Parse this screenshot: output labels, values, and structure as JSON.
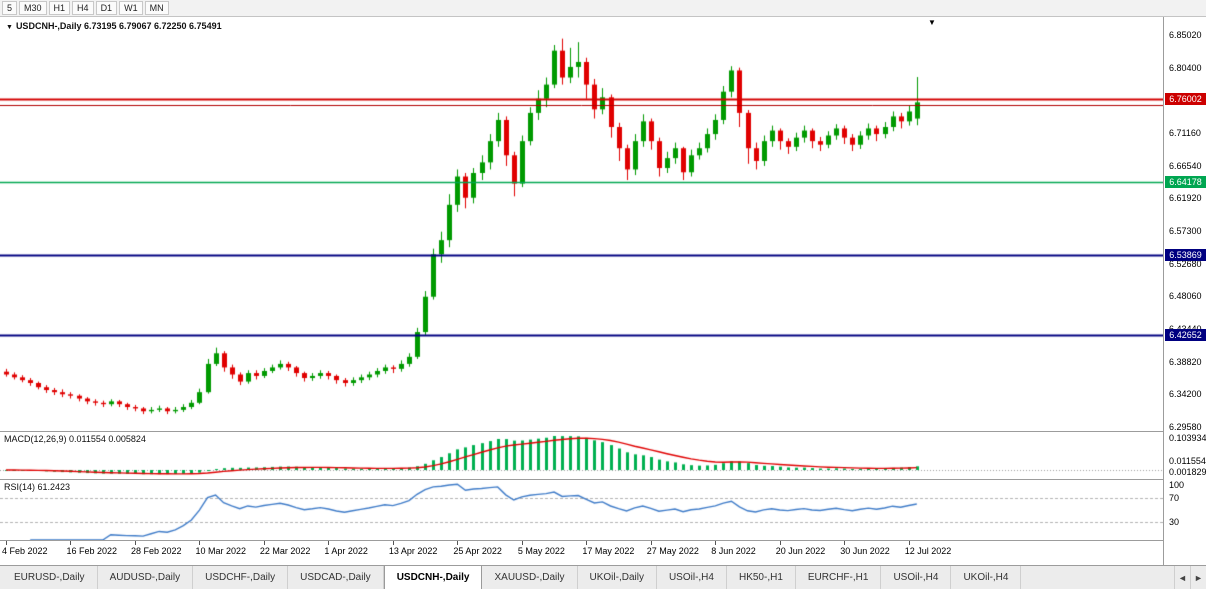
{
  "toolbar": {
    "timeframes": [
      "5",
      "M30",
      "H1",
      "H4",
      "D1",
      "W1",
      "MN"
    ]
  },
  "chart": {
    "title": "USDCNH-,Daily 6.73195 6.79067 6.72250 6.75491",
    "symbol": "USDCNH-,Daily",
    "open": "6.73195",
    "high": "6.79067",
    "low": "6.72250",
    "close": "6.75491",
    "dropdown_icon": "▼",
    "bar_marker_icon": "▼"
  },
  "price_axis": {
    "labels": [
      {
        "text": "6.85020",
        "value": 6.8502
      },
      {
        "text": "6.80400",
        "value": 6.804
      },
      {
        "text": "6.75780",
        "value": 6.7578
      },
      {
        "text": "6.71160",
        "value": 6.7116
      },
      {
        "text": "6.66540",
        "value": 6.6654
      },
      {
        "text": "6.61920",
        "value": 6.6192
      },
      {
        "text": "6.57300",
        "value": 6.573
      },
      {
        "text": "6.52680",
        "value": 6.5268
      },
      {
        "text": "6.48060",
        "value": 6.4806
      },
      {
        "text": "6.43440",
        "value": 6.4344
      },
      {
        "text": "6.38820",
        "value": 6.3882
      },
      {
        "text": "6.34200",
        "value": 6.342
      },
      {
        "text": "6.29580",
        "value": 6.2958
      }
    ]
  },
  "hlines": [
    {
      "price": 6.76002,
      "color": "#D40000",
      "width": 2,
      "badge": "6.76002",
      "badge_color": "#CC0000"
    },
    {
      "price": 6.75152,
      "color": "#B00000",
      "width": 1,
      "badge": null,
      "badge_color": null
    },
    {
      "price": 6.64178,
      "color": "#00A651",
      "width": 1.5,
      "badge": "6.64178",
      "badge_color": "#00A651"
    },
    {
      "price": 6.53869,
      "color": "#000080",
      "width": 2,
      "badge": "6.53869",
      "badge_color": "#000080"
    },
    {
      "price": 6.42652,
      "color": "#000080",
      "width": 2,
      "badge": "6.42652",
      "badge_color": "#000080"
    }
  ],
  "macd": {
    "title": "MACD(12,26,9) 0.011554 0.005824",
    "axis_top": "0.103934",
    "axis_mid": "0.011554",
    "axis_low": "0.001829"
  },
  "rsi": {
    "title": "RSI(14) 61.2423",
    "levels": [
      "100",
      "70",
      "30"
    ]
  },
  "date_axis": [
    {
      "label": "4 Feb 2022",
      "index": 0
    },
    {
      "label": "16 Feb 2022",
      "index": 8
    },
    {
      "label": "28 Feb 2022",
      "index": 16
    },
    {
      "label": "10 Mar 2022",
      "index": 24
    },
    {
      "label": "22 Mar 2022",
      "index": 32
    },
    {
      "label": "1 Apr 2022",
      "index": 40
    },
    {
      "label": "13 Apr 2022",
      "index": 48
    },
    {
      "label": "25 Apr 2022",
      "index": 56
    },
    {
      "label": "5 May 2022",
      "index": 64
    },
    {
      "label": "17 May 2022",
      "index": 72
    },
    {
      "label": "27 May 2022",
      "index": 80
    },
    {
      "label": "8 Jun 2022",
      "index": 88
    },
    {
      "label": "20 Jun 2022",
      "index": 96
    },
    {
      "label": "30 Jun 2022",
      "index": 104
    },
    {
      "label": "12 Jul 2022",
      "index": 112
    }
  ],
  "tabs": {
    "items": [
      "EURUSD-,Daily",
      "AUDUSD-,Daily",
      "USDCHF-,Daily",
      "USDCAD-,Daily",
      "USDCNH-,Daily",
      "XAUUSD-,Daily",
      "UKOil-,Daily",
      "USOil-,H4",
      "HK50-,H1",
      "EURCHF-,H1",
      "USOil-,H4",
      "UKOil-,H4"
    ],
    "active_index": 4,
    "scroll_left_icon": "◄",
    "scroll_right_icon": "►"
  },
  "colors": {
    "bull": "#009A00",
    "bear": "#E00000",
    "macd_hist": "#00B050",
    "macd_signal": "#E00000",
    "rsi_line": "#3E7BC8",
    "level_dash": "#b0b0b0"
  },
  "chart_data": {
    "type": "candlestick",
    "title": "USDCNH-,Daily",
    "timeframe": "Daily",
    "y_range": [
      6.2901,
      6.8756
    ],
    "x_axis_dates": [
      "4 Feb 2022",
      "16 Feb 2022",
      "28 Feb 2022",
      "10 Mar 2022",
      "22 Mar 2022",
      "1 Apr 2022",
      "13 Apr 2022",
      "25 Apr 2022",
      "5 May 2022",
      "17 May 2022",
      "27 May 2022",
      "8 Jun 2022",
      "20 Jun 2022",
      "30 Jun 2022",
      "12 Jul 2022"
    ],
    "x_axis_indices": [
      0,
      8,
      16,
      24,
      32,
      40,
      48,
      56,
      64,
      72,
      80,
      88,
      96,
      104,
      112
    ],
    "last_ohlc": {
      "open": 6.73195,
      "high": 6.79067,
      "low": 6.7225,
      "close": 6.75491
    },
    "overlays": {
      "horizontal_lines": [
        6.76002,
        6.75152,
        6.64178,
        6.53869,
        6.42652
      ]
    },
    "indicators": [
      {
        "type": "MACD",
        "params": [
          12,
          26,
          9
        ],
        "current_values": [
          0.011554,
          0.005824
        ],
        "axis_labels": [
          "0.103934",
          "0.011554",
          "0.001829"
        ]
      },
      {
        "type": "RSI",
        "params": [
          14
        ],
        "current_value": 61.2423,
        "axis_labels": [
          "100",
          "70",
          "30"
        ]
      }
    ],
    "candles": [
      [
        6.374,
        6.378,
        6.367,
        6.37
      ],
      [
        6.37,
        6.373,
        6.363,
        6.366
      ],
      [
        6.366,
        6.369,
        6.359,
        6.362
      ],
      [
        6.362,
        6.365,
        6.354,
        6.358
      ],
      [
        6.358,
        6.36,
        6.349,
        6.352
      ],
      [
        6.352,
        6.355,
        6.344,
        6.348
      ],
      [
        6.348,
        6.351,
        6.341,
        6.345
      ],
      [
        6.345,
        6.349,
        6.338,
        6.342
      ],
      [
        6.342,
        6.345,
        6.336,
        6.34
      ],
      [
        6.34,
        6.342,
        6.332,
        6.336
      ],
      [
        6.336,
        6.338,
        6.328,
        6.332
      ],
      [
        6.332,
        6.335,
        6.326,
        6.33
      ],
      [
        6.33,
        6.333,
        6.324,
        6.328
      ],
      [
        6.328,
        6.335,
        6.325,
        6.332
      ],
      [
        6.332,
        6.334,
        6.324,
        6.328
      ],
      [
        6.328,
        6.33,
        6.32,
        6.324
      ],
      [
        6.324,
        6.327,
        6.318,
        6.322
      ],
      [
        6.322,
        6.324,
        6.314,
        6.318
      ],
      [
        6.318,
        6.324,
        6.315,
        6.32
      ],
      [
        6.32,
        6.326,
        6.317,
        6.322
      ],
      [
        6.322,
        6.324,
        6.314,
        6.318
      ],
      [
        6.318,
        6.324,
        6.315,
        6.32
      ],
      [
        6.32,
        6.328,
        6.317,
        6.324
      ],
      [
        6.324,
        6.334,
        6.321,
        6.33
      ],
      [
        6.33,
        6.35,
        6.328,
        6.345
      ],
      [
        6.345,
        6.392,
        6.343,
        6.385
      ],
      [
        6.385,
        6.408,
        6.382,
        6.4
      ],
      [
        6.4,
        6.403,
        6.374,
        6.38
      ],
      [
        6.38,
        6.384,
        6.364,
        6.37
      ],
      [
        6.37,
        6.373,
        6.355,
        6.36
      ],
      [
        6.36,
        6.376,
        6.357,
        6.372
      ],
      [
        6.372,
        6.376,
        6.363,
        6.368
      ],
      [
        6.368,
        6.379,
        6.365,
        6.375
      ],
      [
        6.375,
        6.384,
        6.372,
        6.38
      ],
      [
        6.38,
        6.39,
        6.377,
        6.385
      ],
      [
        6.385,
        6.388,
        6.375,
        6.38
      ],
      [
        6.38,
        6.382,
        6.367,
        6.372
      ],
      [
        6.372,
        6.374,
        6.36,
        6.365
      ],
      [
        6.365,
        6.372,
        6.361,
        6.368
      ],
      [
        6.368,
        6.376,
        6.364,
        6.372
      ],
      [
        6.372,
        6.375,
        6.363,
        6.368
      ],
      [
        6.368,
        6.37,
        6.357,
        6.362
      ],
      [
        6.362,
        6.365,
        6.353,
        6.358
      ],
      [
        6.358,
        6.366,
        6.354,
        6.362
      ],
      [
        6.362,
        6.37,
        6.358,
        6.366
      ],
      [
        6.366,
        6.374,
        6.362,
        6.37
      ],
      [
        6.37,
        6.379,
        6.366,
        6.375
      ],
      [
        6.375,
        6.384,
        6.371,
        6.38
      ],
      [
        6.38,
        6.383,
        6.372,
        6.378
      ],
      [
        6.378,
        6.39,
        6.374,
        6.385
      ],
      [
        6.385,
        6.4,
        6.381,
        6.395
      ],
      [
        6.395,
        6.436,
        6.392,
        6.43
      ],
      [
        6.43,
        6.488,
        6.426,
        6.48
      ],
      [
        6.48,
        6.548,
        6.476,
        6.54
      ],
      [
        6.54,
        6.572,
        6.528,
        6.56
      ],
      [
        6.56,
        6.625,
        6.55,
        6.61
      ],
      [
        6.61,
        6.66,
        6.6,
        6.65
      ],
      [
        6.65,
        6.655,
        6.605,
        6.62
      ],
      [
        6.62,
        6.662,
        6.612,
        6.655
      ],
      [
        6.655,
        6.68,
        6.645,
        6.67
      ],
      [
        6.67,
        6.71,
        6.66,
        6.7
      ],
      [
        6.7,
        6.74,
        6.692,
        6.73
      ],
      [
        6.73,
        6.735,
        6.665,
        6.68
      ],
      [
        6.68,
        6.685,
        6.622,
        6.64
      ],
      [
        6.64,
        6.708,
        6.635,
        6.7
      ],
      [
        6.7,
        6.748,
        6.694,
        6.74
      ],
      [
        6.74,
        6.772,
        6.73,
        6.76
      ],
      [
        6.76,
        6.79,
        6.748,
        6.78
      ],
      [
        6.78,
        6.836,
        6.775,
        6.828
      ],
      [
        6.828,
        6.845,
        6.78,
        6.79
      ],
      [
        6.79,
        6.832,
        6.782,
        6.805
      ],
      [
        6.805,
        6.84,
        6.79,
        6.812
      ],
      [
        6.812,
        6.818,
        6.76,
        6.78
      ],
      [
        6.78,
        6.788,
        6.732,
        6.745
      ],
      [
        6.745,
        6.775,
        6.738,
        6.762
      ],
      [
        6.762,
        6.766,
        6.705,
        6.72
      ],
      [
        6.72,
        6.726,
        6.672,
        6.69
      ],
      [
        6.69,
        6.695,
        6.645,
        6.66
      ],
      [
        6.66,
        6.71,
        6.652,
        6.7
      ],
      [
        6.7,
        6.738,
        6.692,
        6.728
      ],
      [
        6.728,
        6.732,
        6.688,
        6.7
      ],
      [
        6.7,
        6.705,
        6.65,
        6.662
      ],
      [
        6.662,
        6.685,
        6.655,
        6.676
      ],
      [
        6.676,
        6.698,
        6.668,
        6.69
      ],
      [
        6.69,
        6.692,
        6.645,
        6.656
      ],
      [
        6.656,
        6.688,
        6.65,
        6.68
      ],
      [
        6.68,
        6.698,
        6.674,
        6.69
      ],
      [
        6.69,
        6.718,
        6.684,
        6.71
      ],
      [
        6.71,
        6.738,
        6.702,
        6.73
      ],
      [
        6.73,
        6.778,
        6.724,
        6.77
      ],
      [
        6.77,
        6.806,
        6.762,
        6.8
      ],
      [
        6.8,
        6.804,
        6.72,
        6.74
      ],
      [
        6.74,
        6.744,
        6.668,
        6.69
      ],
      [
        6.69,
        6.698,
        6.66,
        6.672
      ],
      [
        6.672,
        6.708,
        6.665,
        6.7
      ],
      [
        6.7,
        6.722,
        6.692,
        6.715
      ],
      [
        6.715,
        6.718,
        6.688,
        6.7
      ],
      [
        6.7,
        6.704,
        6.682,
        6.692
      ],
      [
        6.692,
        6.712,
        6.686,
        6.705
      ],
      [
        6.705,
        6.722,
        6.698,
        6.715
      ],
      [
        6.715,
        6.718,
        6.69,
        6.7
      ],
      [
        6.7,
        6.706,
        6.686,
        6.695
      ],
      [
        6.695,
        6.714,
        6.69,
        6.708
      ],
      [
        6.708,
        6.724,
        6.702,
        6.718
      ],
      [
        6.718,
        6.722,
        6.696,
        6.705
      ],
      [
        6.705,
        6.71,
        6.686,
        6.695
      ],
      [
        6.695,
        6.714,
        6.689,
        6.708
      ],
      [
        6.708,
        6.725,
        6.702,
        6.718
      ],
      [
        6.718,
        6.722,
        6.7,
        6.71
      ],
      [
        6.71,
        6.727,
        6.704,
        6.72
      ],
      [
        6.72,
        6.742,
        6.714,
        6.735
      ],
      [
        6.735,
        6.74,
        6.718,
        6.728
      ],
      [
        6.728,
        6.75,
        6.722,
        6.742
      ],
      [
        6.73195,
        6.79067,
        6.7225,
        6.75491
      ]
    ]
  }
}
